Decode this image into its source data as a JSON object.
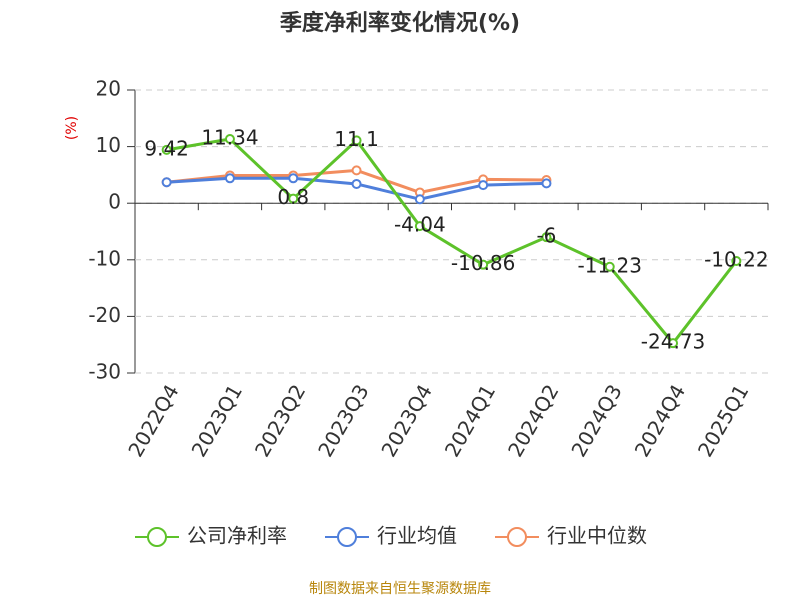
{
  "chart_data": {
    "type": "line",
    "title": "季度净利率变化情况(%)",
    "y_label": "(%)",
    "source": "制图数据来自恒生聚源数据库",
    "categories": [
      "2022Q4",
      "2023Q1",
      "2023Q2",
      "2023Q3",
      "2023Q4",
      "2024Q1",
      "2024Q2",
      "2024Q3",
      "2024Q4",
      "2025Q1"
    ],
    "series": [
      {
        "name": "公司净利率",
        "color": "#5dc22a",
        "values": [
          9.42,
          11.34,
          0.8,
          11.1,
          -4.04,
          -10.86,
          -6,
          -11.23,
          -24.73,
          -10.22
        ],
        "labels": true
      },
      {
        "name": "行业均值",
        "color": "#4f7fdb",
        "values": [
          3.7,
          4.4,
          4.4,
          3.4,
          0.7,
          3.2,
          3.5,
          null,
          null,
          null
        ]
      },
      {
        "name": "行业中位数",
        "color": "#f28d5e",
        "values": [
          3.7,
          4.9,
          4.9,
          5.8,
          1.9,
          4.2,
          4.1,
          null,
          null,
          null
        ]
      }
    ],
    "ylim": [
      -30,
      20
    ],
    "yticks": [
      -30,
      -20,
      -10,
      0,
      10,
      20
    ],
    "grid": true,
    "legend": "bottom"
  }
}
